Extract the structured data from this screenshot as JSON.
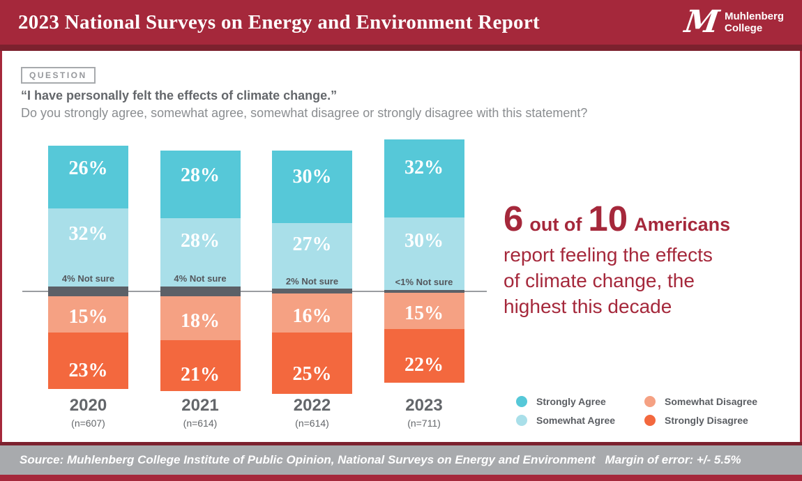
{
  "header": {
    "title": "2023 National Surveys on Energy and Environment Report",
    "logo": {
      "monogram": "M",
      "name_line1": "Muhlenberg",
      "name_line2": "College"
    }
  },
  "question": {
    "badge": "QUESTION",
    "statement": "“I have personally felt the effects of climate change.”",
    "prompt": "Do you strongly agree, somewhat agree, somewhat disagree or strongly disagree with this statement?"
  },
  "callout": {
    "big_number_1": "6",
    "connector": "out of",
    "big_number_2": "10",
    "emphasis": "Americans",
    "body_lines": [
      "report feeling the effects",
      "of climate change, the",
      "highest this decade"
    ]
  },
  "chart_data": {
    "type": "bar",
    "subtype": "diverging-stacked-bar",
    "categories": [
      "2020",
      "2021",
      "2022",
      "2023"
    ],
    "sample_sizes": [
      "(n=607)",
      "(n=614)",
      "(n=614)",
      "(n=711)"
    ],
    "series": [
      {
        "name": "Strongly Agree",
        "color": "#56C8D8",
        "values": [
          26,
          28,
          30,
          32
        ],
        "labels": [
          "26%",
          "28%",
          "30%",
          "32%"
        ]
      },
      {
        "name": "Somewhat Agree",
        "color": "#A9DFE9",
        "values": [
          32,
          28,
          27,
          30
        ],
        "labels": [
          "32%",
          "28%",
          "27%",
          "30%"
        ]
      },
      {
        "name": "Not sure",
        "color": "#5C6067",
        "values": [
          4,
          4,
          2,
          0.9
        ],
        "labels": [
          "4% Not sure",
          "4% Not sure",
          "2% Not sure",
          "<1% Not sure"
        ]
      },
      {
        "name": "Somewhat Disagree",
        "color": "#F5A183",
        "values": [
          15,
          18,
          16,
          15
        ],
        "labels": [
          "15%",
          "18%",
          "16%",
          "15%"
        ]
      },
      {
        "name": "Strongly Disagree",
        "color": "#F3683E",
        "values": [
          23,
          21,
          25,
          22
        ],
        "labels": [
          "23%",
          "21%",
          "25%",
          "22%"
        ]
      }
    ],
    "layout_note": "Agree segments stack above a zero baseline, disagree segments below; the Not sure segment straddles the baseline.",
    "axis": {
      "baseline_color": "#9A9DA0",
      "grid": false
    }
  },
  "legend": {
    "items": [
      {
        "label": "Strongly Agree",
        "color": "#56C8D8"
      },
      {
        "label": "Somewhat Disagree",
        "color": "#F5A183"
      },
      {
        "label": "Somewhat Agree",
        "color": "#A9DFE9"
      },
      {
        "label": "Strongly Disagree",
        "color": "#F3683E"
      }
    ]
  },
  "footer": {
    "source": "Source: Muhlenberg College Institute of Public Opinion, National Surveys on Energy and Environment",
    "margin_of_error": "Margin of error: +/- 5.5%"
  },
  "theme": {
    "crimson": "#A5283B",
    "dark_maroon": "#7C212E",
    "footer_gray": "#A8AAAD",
    "notsure_text": "#54575C",
    "year_text": "#63666A"
  }
}
